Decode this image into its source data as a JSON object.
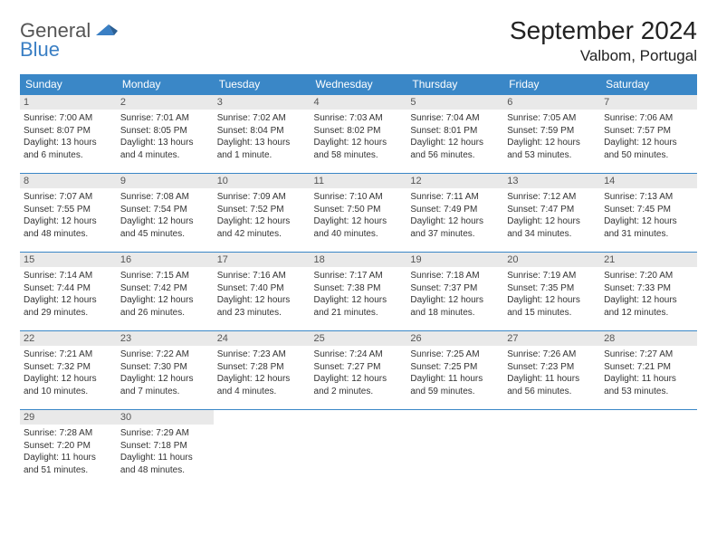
{
  "brand": {
    "part1": "General",
    "part2": "Blue"
  },
  "title": {
    "month": "September 2024",
    "location": "Valbom, Portugal"
  },
  "colors": {
    "header_bg": "#3a87c7",
    "header_text": "#ffffff",
    "daynum_bg": "#e9e9e9",
    "border": "#3a87c7",
    "title_color": "#222222",
    "body_text": "#333333"
  },
  "weekdays": [
    "Sunday",
    "Monday",
    "Tuesday",
    "Wednesday",
    "Thursday",
    "Friday",
    "Saturday"
  ],
  "weeks": [
    [
      {
        "n": "1",
        "sr": "Sunrise: 7:00 AM",
        "ss": "Sunset: 8:07 PM",
        "dl": "Daylight: 13 hours and 6 minutes."
      },
      {
        "n": "2",
        "sr": "Sunrise: 7:01 AM",
        "ss": "Sunset: 8:05 PM",
        "dl": "Daylight: 13 hours and 4 minutes."
      },
      {
        "n": "3",
        "sr": "Sunrise: 7:02 AM",
        "ss": "Sunset: 8:04 PM",
        "dl": "Daylight: 13 hours and 1 minute."
      },
      {
        "n": "4",
        "sr": "Sunrise: 7:03 AM",
        "ss": "Sunset: 8:02 PM",
        "dl": "Daylight: 12 hours and 58 minutes."
      },
      {
        "n": "5",
        "sr": "Sunrise: 7:04 AM",
        "ss": "Sunset: 8:01 PM",
        "dl": "Daylight: 12 hours and 56 minutes."
      },
      {
        "n": "6",
        "sr": "Sunrise: 7:05 AM",
        "ss": "Sunset: 7:59 PM",
        "dl": "Daylight: 12 hours and 53 minutes."
      },
      {
        "n": "7",
        "sr": "Sunrise: 7:06 AM",
        "ss": "Sunset: 7:57 PM",
        "dl": "Daylight: 12 hours and 50 minutes."
      }
    ],
    [
      {
        "n": "8",
        "sr": "Sunrise: 7:07 AM",
        "ss": "Sunset: 7:55 PM",
        "dl": "Daylight: 12 hours and 48 minutes."
      },
      {
        "n": "9",
        "sr": "Sunrise: 7:08 AM",
        "ss": "Sunset: 7:54 PM",
        "dl": "Daylight: 12 hours and 45 minutes."
      },
      {
        "n": "10",
        "sr": "Sunrise: 7:09 AM",
        "ss": "Sunset: 7:52 PM",
        "dl": "Daylight: 12 hours and 42 minutes."
      },
      {
        "n": "11",
        "sr": "Sunrise: 7:10 AM",
        "ss": "Sunset: 7:50 PM",
        "dl": "Daylight: 12 hours and 40 minutes."
      },
      {
        "n": "12",
        "sr": "Sunrise: 7:11 AM",
        "ss": "Sunset: 7:49 PM",
        "dl": "Daylight: 12 hours and 37 minutes."
      },
      {
        "n": "13",
        "sr": "Sunrise: 7:12 AM",
        "ss": "Sunset: 7:47 PM",
        "dl": "Daylight: 12 hours and 34 minutes."
      },
      {
        "n": "14",
        "sr": "Sunrise: 7:13 AM",
        "ss": "Sunset: 7:45 PM",
        "dl": "Daylight: 12 hours and 31 minutes."
      }
    ],
    [
      {
        "n": "15",
        "sr": "Sunrise: 7:14 AM",
        "ss": "Sunset: 7:44 PM",
        "dl": "Daylight: 12 hours and 29 minutes."
      },
      {
        "n": "16",
        "sr": "Sunrise: 7:15 AM",
        "ss": "Sunset: 7:42 PM",
        "dl": "Daylight: 12 hours and 26 minutes."
      },
      {
        "n": "17",
        "sr": "Sunrise: 7:16 AM",
        "ss": "Sunset: 7:40 PM",
        "dl": "Daylight: 12 hours and 23 minutes."
      },
      {
        "n": "18",
        "sr": "Sunrise: 7:17 AM",
        "ss": "Sunset: 7:38 PM",
        "dl": "Daylight: 12 hours and 21 minutes."
      },
      {
        "n": "19",
        "sr": "Sunrise: 7:18 AM",
        "ss": "Sunset: 7:37 PM",
        "dl": "Daylight: 12 hours and 18 minutes."
      },
      {
        "n": "20",
        "sr": "Sunrise: 7:19 AM",
        "ss": "Sunset: 7:35 PM",
        "dl": "Daylight: 12 hours and 15 minutes."
      },
      {
        "n": "21",
        "sr": "Sunrise: 7:20 AM",
        "ss": "Sunset: 7:33 PM",
        "dl": "Daylight: 12 hours and 12 minutes."
      }
    ],
    [
      {
        "n": "22",
        "sr": "Sunrise: 7:21 AM",
        "ss": "Sunset: 7:32 PM",
        "dl": "Daylight: 12 hours and 10 minutes."
      },
      {
        "n": "23",
        "sr": "Sunrise: 7:22 AM",
        "ss": "Sunset: 7:30 PM",
        "dl": "Daylight: 12 hours and 7 minutes."
      },
      {
        "n": "24",
        "sr": "Sunrise: 7:23 AM",
        "ss": "Sunset: 7:28 PM",
        "dl": "Daylight: 12 hours and 4 minutes."
      },
      {
        "n": "25",
        "sr": "Sunrise: 7:24 AM",
        "ss": "Sunset: 7:27 PM",
        "dl": "Daylight: 12 hours and 2 minutes."
      },
      {
        "n": "26",
        "sr": "Sunrise: 7:25 AM",
        "ss": "Sunset: 7:25 PM",
        "dl": "Daylight: 11 hours and 59 minutes."
      },
      {
        "n": "27",
        "sr": "Sunrise: 7:26 AM",
        "ss": "Sunset: 7:23 PM",
        "dl": "Daylight: 11 hours and 56 minutes."
      },
      {
        "n": "28",
        "sr": "Sunrise: 7:27 AM",
        "ss": "Sunset: 7:21 PM",
        "dl": "Daylight: 11 hours and 53 minutes."
      }
    ],
    [
      {
        "n": "29",
        "sr": "Sunrise: 7:28 AM",
        "ss": "Sunset: 7:20 PM",
        "dl": "Daylight: 11 hours and 51 minutes."
      },
      {
        "n": "30",
        "sr": "Sunrise: 7:29 AM",
        "ss": "Sunset: 7:18 PM",
        "dl": "Daylight: 11 hours and 48 minutes."
      },
      null,
      null,
      null,
      null,
      null
    ]
  ]
}
